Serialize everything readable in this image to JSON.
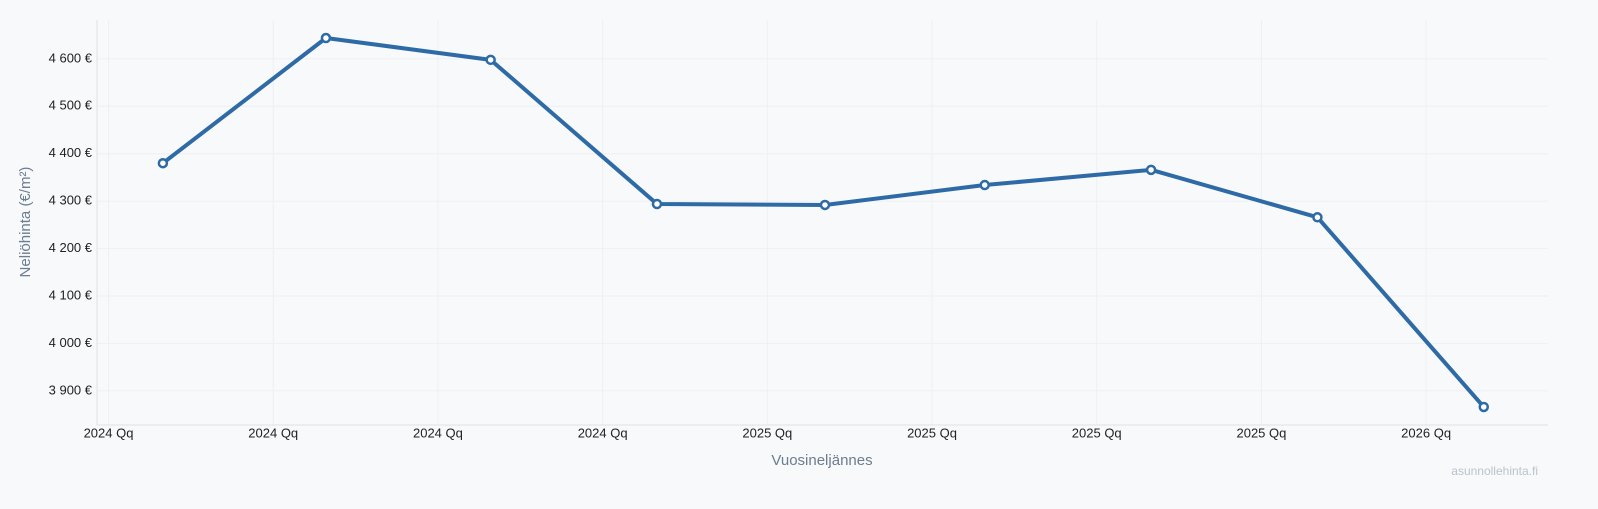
{
  "chart_data": {
    "type": "line",
    "x_label": "Vuosineljännes",
    "y_label": "Neliöhinta (€/m²)",
    "watermark": "asunnollehinta.fi",
    "x": [
      0.33,
      1.32,
      2.32,
      3.33,
      4.35,
      5.32,
      6.33,
      7.34,
      8.35
    ],
    "series": [
      {
        "color": "#2e6ba6",
        "values": [
          4380,
          4644,
          4598,
          4294,
          4292,
          4334,
          4366,
          4266,
          3866
        ]
      }
    ],
    "xlim": [
      -0.07,
      8.74
    ],
    "xticks": [
      {
        "value": 0,
        "label": "2024 Qq"
      },
      {
        "value": 1,
        "label": "2024 Qq"
      },
      {
        "value": 2,
        "label": "2024 Qq"
      },
      {
        "value": 3,
        "label": "2024 Qq"
      },
      {
        "value": 4,
        "label": "2025 Qq"
      },
      {
        "value": 5,
        "label": "2025 Qq"
      },
      {
        "value": 6,
        "label": "2025 Qq"
      },
      {
        "value": 7,
        "label": "2025 Qq"
      },
      {
        "value": 8,
        "label": "2026 Qq"
      }
    ],
    "ylim": [
      3828,
      4682
    ],
    "yticks": [
      {
        "value": 3900,
        "label": "3 900 €"
      },
      {
        "value": 4000,
        "label": "4 000 €"
      },
      {
        "value": 4100,
        "label": "4 100 €"
      },
      {
        "value": 4200,
        "label": "4 200 €"
      },
      {
        "value": 4300,
        "label": "4 300 €"
      },
      {
        "value": 4400,
        "label": "4 400 €"
      },
      {
        "value": 4500,
        "label": "4 500 €"
      },
      {
        "value": 4600,
        "label": "4 600 €"
      }
    ],
    "grid": true
  }
}
